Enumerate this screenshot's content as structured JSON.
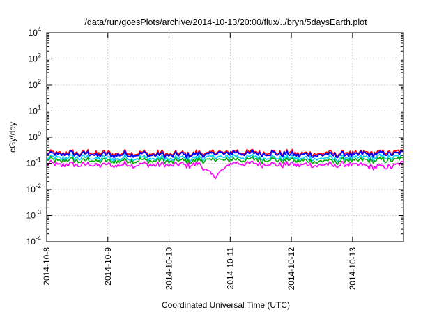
{
  "chart_data": {
    "type": "line",
    "title": "/data/run/goesPlots/archive/2014-10-13/20:00/flux/../bryn/5daysEarth.plot",
    "xlabel": "Coordinated Universal Time (UTC)",
    "ylabel": "cGy/day",
    "yscale": "log",
    "ylim": [
      0.0001,
      10000
    ],
    "xlim": [
      "2014-10-08 00:00",
      "2014-10-13 20:00"
    ],
    "x_ticks": [
      "2014-10-8",
      "2014-10-9",
      "2014-10-10",
      "2014-10-11",
      "2014-10-12",
      "2014-10-13"
    ],
    "y_ticks": [
      {
        "base": "10",
        "exp": "-4",
        "value": 0.0001
      },
      {
        "base": "10",
        "exp": "-3",
        "value": 0.001
      },
      {
        "base": "10",
        "exp": "-2",
        "value": 0.01
      },
      {
        "base": "10",
        "exp": "-1",
        "value": 0.1
      },
      {
        "base": "10",
        "exp": "0",
        "value": 1
      },
      {
        "base": "10",
        "exp": "1",
        "value": 10
      },
      {
        "base": "10",
        "exp": "2",
        "value": 100
      },
      {
        "base": "10",
        "exp": "3",
        "value": 1000
      },
      {
        "base": "10",
        "exp": "4",
        "value": 10000
      }
    ],
    "grid": true,
    "legend": "none",
    "series": [
      {
        "color": "#ff0000",
        "x": [
          "2014-10-08 00:00",
          "2014-10-08 12:00",
          "2014-10-09 00:00",
          "2014-10-09 12:00",
          "2014-10-10 00:00",
          "2014-10-10 12:00",
          "2014-10-11 00:00",
          "2014-10-11 12:00",
          "2014-10-12 00:00",
          "2014-10-12 12:00",
          "2014-10-13 00:00",
          "2014-10-13 12:00",
          "2014-10-13 20:00"
        ],
        "values": [
          0.25,
          0.26,
          0.24,
          0.25,
          0.23,
          0.25,
          0.28,
          0.27,
          0.25,
          0.24,
          0.25,
          0.26,
          0.27
        ]
      },
      {
        "color": "#0000ff",
        "x": [
          "2014-10-08 00:00",
          "2014-10-08 12:00",
          "2014-10-09 00:00",
          "2014-10-09 12:00",
          "2014-10-10 00:00",
          "2014-10-10 12:00",
          "2014-10-11 00:00",
          "2014-10-11 12:00",
          "2014-10-12 00:00",
          "2014-10-12 12:00",
          "2014-10-13 00:00",
          "2014-10-13 12:00",
          "2014-10-13 20:00"
        ],
        "values": [
          0.22,
          0.23,
          0.21,
          0.22,
          0.2,
          0.22,
          0.25,
          0.24,
          0.22,
          0.21,
          0.22,
          0.23,
          0.24
        ]
      },
      {
        "color": "#00ccff",
        "x": [
          "2014-10-08 00:00",
          "2014-10-08 12:00",
          "2014-10-09 00:00",
          "2014-10-09 12:00",
          "2014-10-10 00:00",
          "2014-10-10 12:00",
          "2014-10-11 00:00",
          "2014-10-11 12:00",
          "2014-10-12 00:00",
          "2014-10-12 12:00",
          "2014-10-13 00:00",
          "2014-10-13 12:00",
          "2014-10-13 20:00"
        ],
        "values": [
          0.16,
          0.17,
          0.15,
          0.16,
          0.15,
          0.16,
          0.18,
          0.17,
          0.16,
          0.15,
          0.16,
          0.17,
          0.17
        ]
      },
      {
        "color": "#00aa00",
        "x": [
          "2014-10-08 00:00",
          "2014-10-08 12:00",
          "2014-10-09 00:00",
          "2014-10-09 12:00",
          "2014-10-10 00:00",
          "2014-10-10 12:00",
          "2014-10-11 00:00",
          "2014-10-11 12:00",
          "2014-10-12 00:00",
          "2014-10-12 12:00",
          "2014-10-13 00:00",
          "2014-10-13 12:00",
          "2014-10-13 20:00"
        ],
        "values": [
          0.13,
          0.13,
          0.12,
          0.13,
          0.12,
          0.13,
          0.14,
          0.14,
          0.13,
          0.12,
          0.13,
          0.13,
          0.14
        ]
      },
      {
        "color": "#ff00ff",
        "x": [
          "2014-10-08 00:00",
          "2014-10-08 12:00",
          "2014-10-09 00:00",
          "2014-10-09 12:00",
          "2014-10-10 00:00",
          "2014-10-10 12:00",
          "2014-10-10 18:00",
          "2014-10-11 00:00",
          "2014-10-11 12:00",
          "2014-10-12 00:00",
          "2014-10-12 12:00",
          "2014-10-13 00:00",
          "2014-10-13 12:00",
          "2014-10-13 20:00"
        ],
        "values": [
          0.09,
          0.09,
          0.085,
          0.09,
          0.085,
          0.09,
          0.03,
          0.1,
          0.095,
          0.09,
          0.085,
          0.09,
          0.07,
          0.095
        ]
      }
    ]
  }
}
